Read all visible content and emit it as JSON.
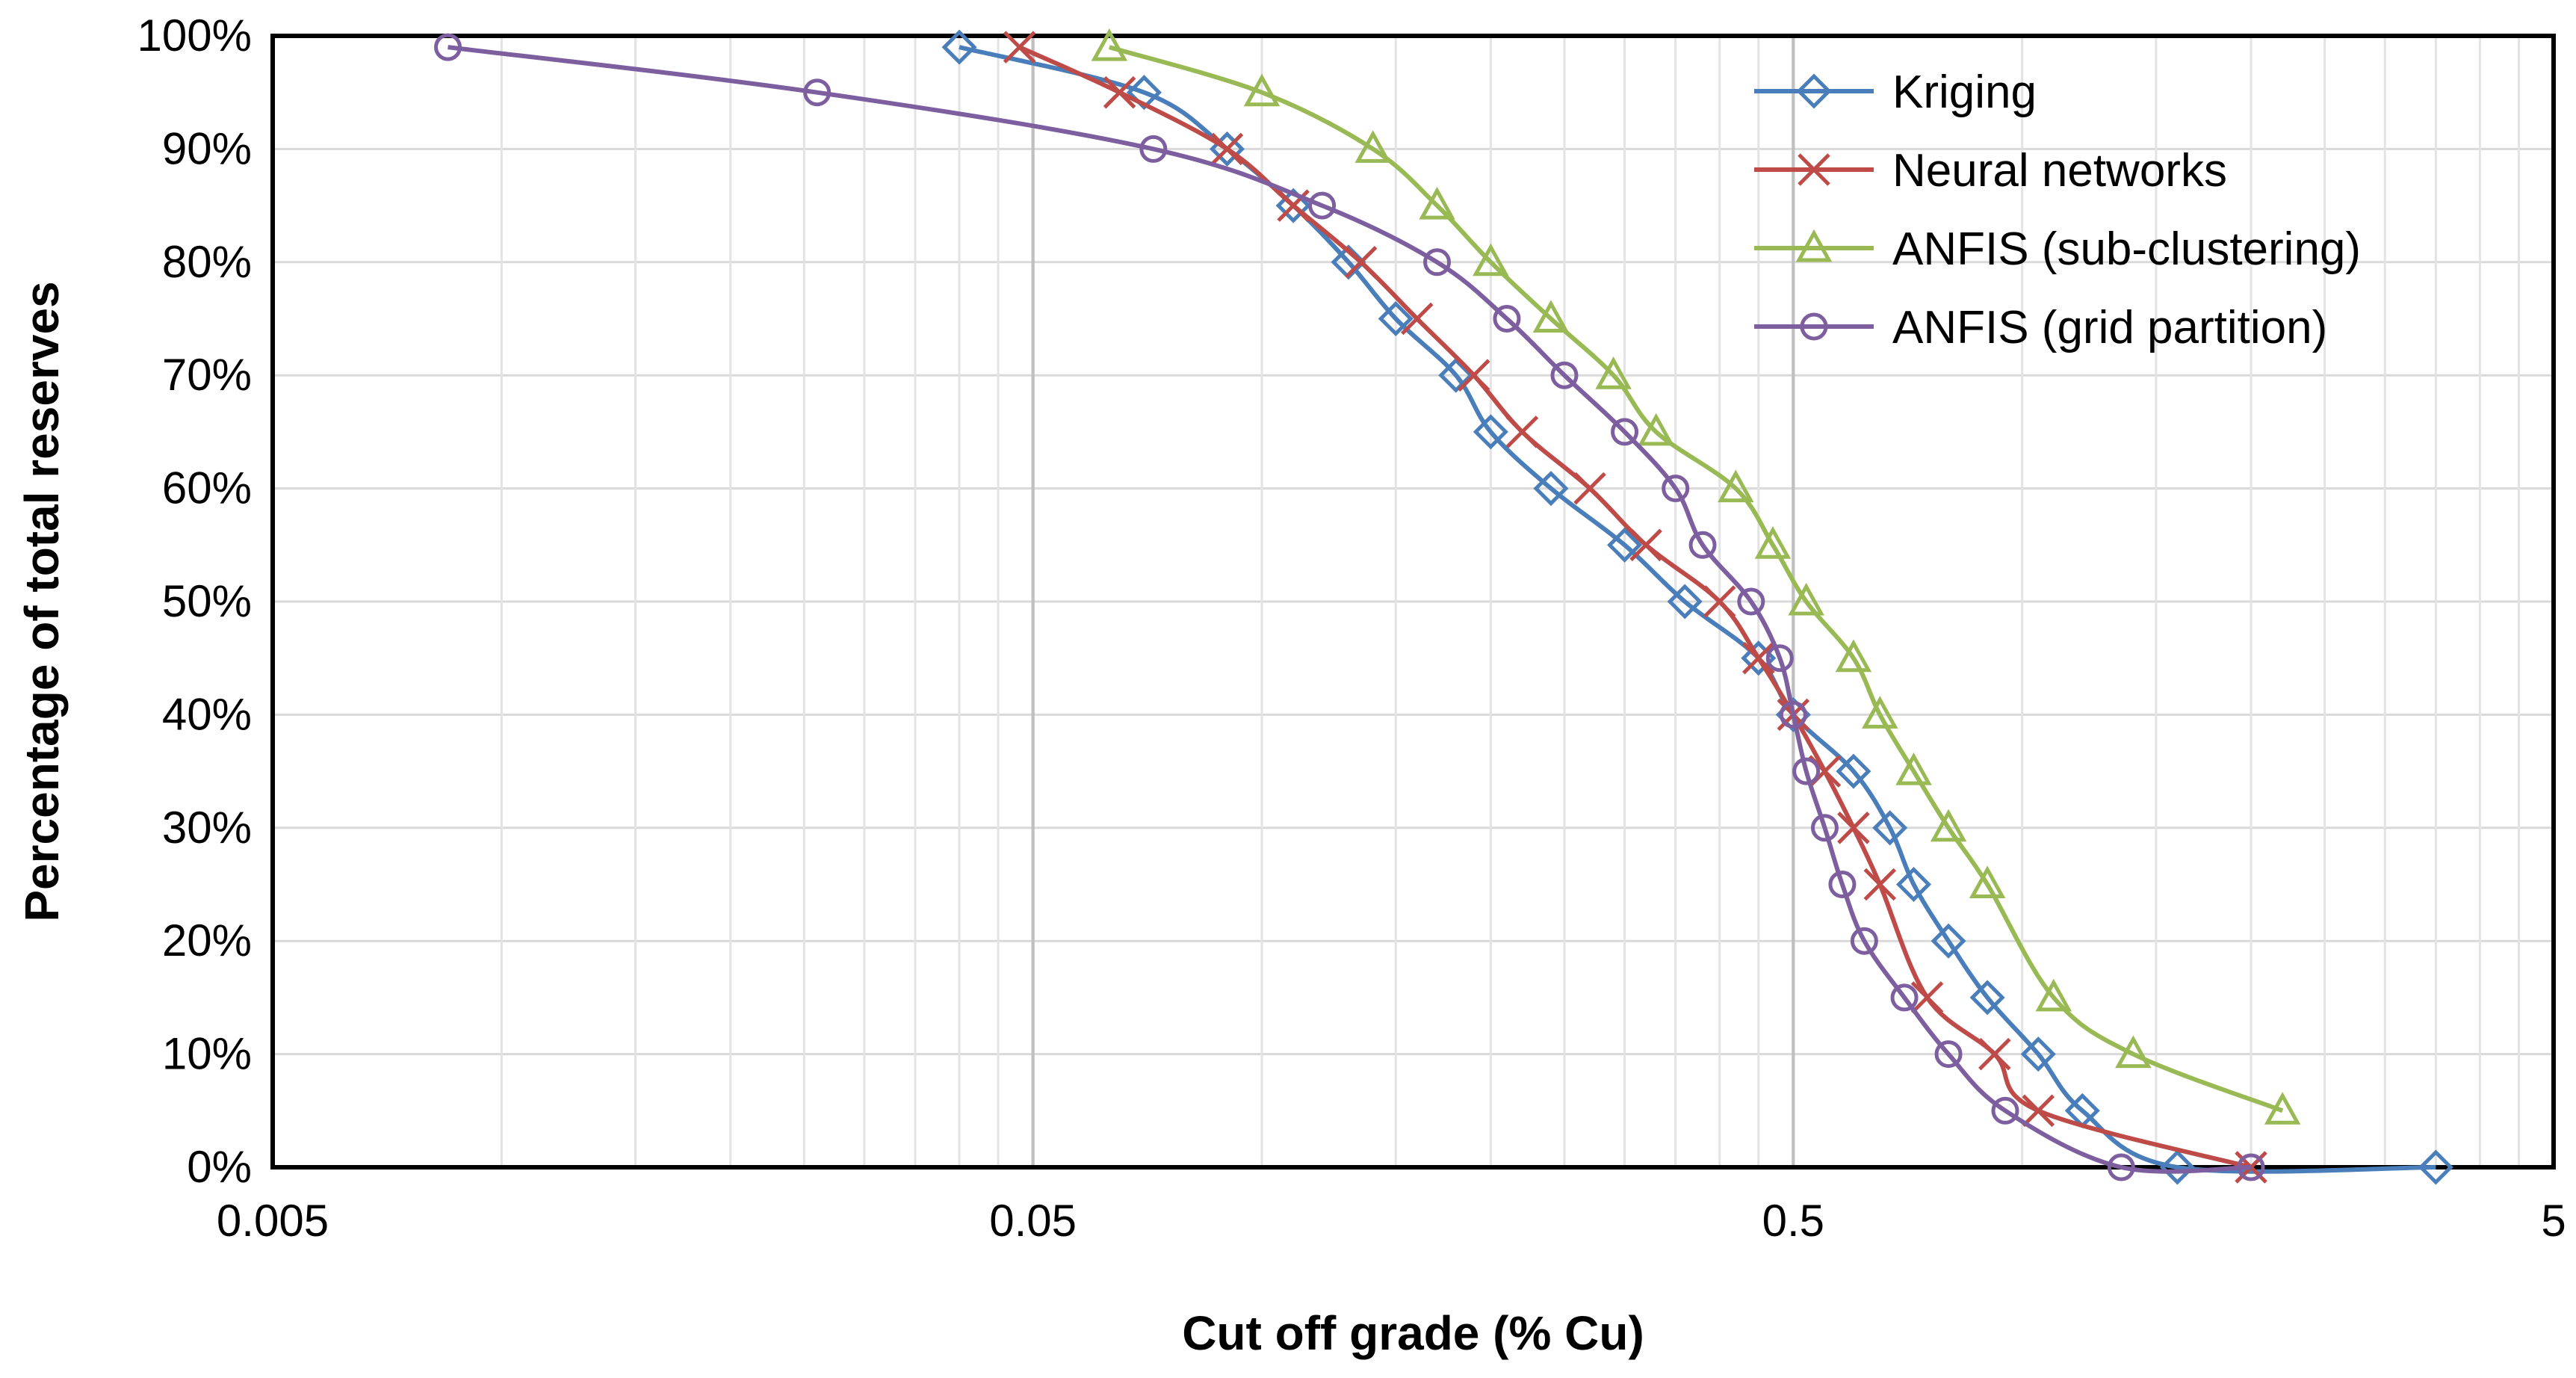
{
  "chart_data": {
    "type": "line",
    "x_scale": "log",
    "xlabel": "Cut off grade  (% Cu)",
    "ylabel": "Percentage of total reserves",
    "xlim": [
      0.005,
      5
    ],
    "ylim": [
      0,
      100
    ],
    "x_ticks": [
      0.005,
      0.05,
      0.5,
      5
    ],
    "x_tick_labels": [
      "0.005",
      "0.05",
      "0.5",
      "5"
    ],
    "y_ticks": [
      0,
      10,
      20,
      30,
      40,
      50,
      60,
      70,
      80,
      90,
      100
    ],
    "y_tick_labels": [
      "0%",
      "10%",
      "20%",
      "30%",
      "40%",
      "50%",
      "60%",
      "70%",
      "80%",
      "90%",
      "100%"
    ],
    "grid": true,
    "legend_position": "top-right",
    "series": [
      {
        "name": "Kriging",
        "color": "#4a7ebb",
        "marker": "diamond",
        "x": [
          0.04,
          0.07,
          0.09,
          0.11,
          0.13,
          0.15,
          0.18,
          0.2,
          0.24,
          0.3,
          0.36,
          0.45,
          0.5,
          0.6,
          0.67,
          0.72,
          0.8,
          0.9,
          1.05,
          1.2,
          1.6,
          3.5
        ],
        "y": [
          99,
          95,
          90,
          85,
          80,
          75,
          70,
          65,
          60,
          55,
          50,
          45,
          40,
          35,
          30,
          25,
          20,
          15,
          10,
          5,
          0,
          0
        ]
      },
      {
        "name": "Neural networks",
        "color": "#be4b48",
        "marker": "x",
        "x": [
          0.048,
          0.065,
          0.09,
          0.11,
          0.135,
          0.16,
          0.19,
          0.22,
          0.27,
          0.32,
          0.4,
          0.45,
          0.5,
          0.55,
          0.6,
          0.65,
          0.75,
          0.92,
          1.05,
          2.0
        ],
        "y": [
          99,
          95,
          90,
          85,
          80,
          75,
          70,
          65,
          60,
          55,
          50,
          45,
          40,
          35,
          30,
          25,
          15,
          10,
          5,
          0
        ]
      },
      {
        "name": "ANFIS (sub-clustering)",
        "color": "#98b954",
        "marker": "triangle",
        "x": [
          0.063,
          0.1,
          0.14,
          0.17,
          0.2,
          0.24,
          0.29,
          0.33,
          0.42,
          0.47,
          0.52,
          0.6,
          0.65,
          0.72,
          0.8,
          0.9,
          1.1,
          1.4,
          2.2
        ],
        "y": [
          99,
          95,
          90,
          85,
          80,
          75,
          70,
          65,
          60,
          55,
          50,
          45,
          40,
          35,
          30,
          25,
          15,
          10,
          5
        ]
      },
      {
        "name": "ANFIS (grid partition)",
        "color": "#7d5fa0",
        "marker": "circle",
        "x": [
          0.0085,
          0.026,
          0.072,
          0.12,
          0.17,
          0.21,
          0.25,
          0.3,
          0.35,
          0.38,
          0.44,
          0.48,
          0.5,
          0.52,
          0.55,
          0.58,
          0.62,
          0.7,
          0.8,
          0.95,
          1.35,
          2.0
        ],
        "y": [
          99,
          95,
          90,
          85,
          80,
          75,
          70,
          65,
          60,
          55,
          50,
          45,
          40,
          35,
          30,
          25,
          20,
          15,
          10,
          5,
          0,
          0
        ]
      }
    ]
  }
}
